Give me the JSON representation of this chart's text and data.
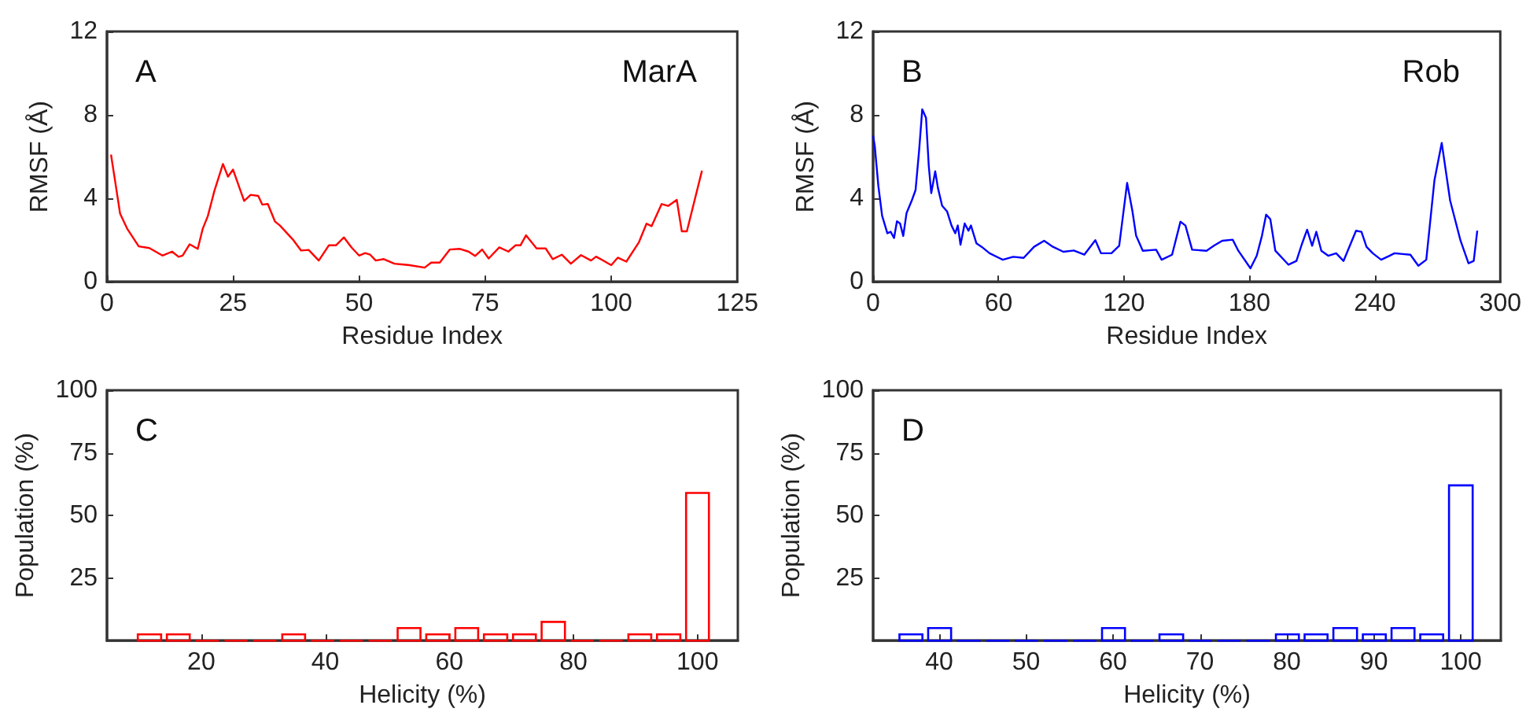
{
  "chart_data": [
    {
      "type": "line",
      "xlabel": "Residue Index",
      "ylabel": "RMSF (Å)",
      "annotations": [
        "A",
        "MarA"
      ],
      "xlim": [
        0,
        125
      ],
      "xticks": [
        0,
        25,
        50,
        75,
        100,
        125
      ],
      "ylim": [
        0,
        12
      ],
      "yticks": [
        0,
        4,
        8,
        12
      ],
      "x": [
        0.8,
        1.6,
        2.6,
        4,
        6.3,
        8.4,
        11,
        12.9,
        14.2,
        15,
        16.4,
        18,
        19,
        20,
        21.3,
        23,
        24,
        25,
        27.2,
        28.5,
        30,
        30.8,
        31.9,
        33.3,
        34.3,
        37,
        38.5,
        40,
        42,
        44,
        45.4,
        47,
        48.5,
        50,
        51.2,
        52.2,
        53.3,
        54.9,
        57,
        60,
        63,
        64.3,
        66,
        68,
        70,
        71.7,
        73,
        74.4,
        75.7,
        77.8,
        79.6,
        81,
        82,
        83.1,
        85.2,
        87,
        88.4,
        90.2,
        92,
        94,
        96,
        97,
        100,
        101.3,
        103,
        105.5,
        107,
        108,
        110,
        111.3,
        113,
        114,
        115,
        118
      ],
      "series": [
        {
          "color": "#ff0000",
          "values": [
            6.1,
            4.85,
            3.27,
            2.55,
            1.7,
            1.62,
            1.26,
            1.45,
            1.2,
            1.26,
            1.8,
            1.58,
            2.55,
            3.15,
            4.36,
            5.65,
            5.04,
            5.38,
            3.88,
            4.17,
            4.12,
            3.7,
            3.73,
            2.9,
            2.7,
            1.99,
            1.5,
            1.53,
            1.02,
            1.75,
            1.75,
            2.13,
            1.65,
            1.26,
            1.38,
            1.3,
            1.02,
            1.09,
            0.87,
            0.8,
            0.68,
            0.92,
            0.92,
            1.55,
            1.58,
            1.45,
            1.24,
            1.55,
            1.12,
            1.65,
            1.45,
            1.75,
            1.75,
            2.23,
            1.6,
            1.6,
            1.09,
            1.3,
            0.87,
            1.28,
            1.02,
            1.21,
            0.8,
            1.16,
            0.97,
            1.9,
            2.79,
            2.67,
            3.73,
            3.64,
            3.93,
            2.42,
            2.42,
            5.33
          ]
        }
      ]
    },
    {
      "type": "line",
      "xlabel": "Residue Index",
      "ylabel": "RMSF (Å)",
      "annotations": [
        "B",
        "Rob"
      ],
      "xlim": [
        0,
        300
      ],
      "xticks": [
        0,
        60,
        120,
        180,
        240,
        300
      ],
      "ylim": [
        0,
        12
      ],
      "yticks": [
        0,
        4,
        8,
        12
      ],
      "x": [
        0,
        0.8,
        2.5,
        4.3,
        6.8,
        8.4,
        10,
        11.4,
        12.9,
        14.4,
        16,
        18.5,
        20.3,
        22,
        23.5,
        25.3,
        26.6,
        27.8,
        29.7,
        31,
        33,
        35.4,
        37.5,
        39.3,
        40.5,
        41.8,
        43.8,
        45.6,
        46.8,
        49.4,
        51.9,
        55.7,
        62,
        67,
        72,
        77,
        81.8,
        86,
        91,
        96,
        101,
        106.3,
        109,
        114,
        117.7,
        121.5,
        124,
        125.8,
        129,
        135.4,
        138,
        143,
        147,
        149.4,
        152.6,
        159.5,
        163,
        167,
        172,
        174.7,
        180.5,
        183.5,
        186,
        188,
        190,
        192.4,
        198.7,
        202.5,
        205,
        207.6,
        210,
        212,
        214.4,
        217.7,
        221.5,
        225,
        231,
        233.6,
        236,
        239,
        243,
        247,
        249.4,
        257,
        260.8,
        264.6,
        268.5,
        272,
        276,
        281,
        284.8,
        287.3,
        289
      ],
      "series": [
        {
          "color": "#0000ff",
          "values": [
            7.0,
            6.5,
            4.6,
            3.17,
            2.33,
            2.4,
            2.1,
            2.9,
            2.8,
            2.2,
            3.3,
            3.9,
            4.4,
            6.3,
            8.27,
            7.86,
            5.58,
            4.25,
            5.3,
            4.5,
            3.65,
            3.37,
            2.7,
            2.33,
            2.7,
            1.78,
            2.8,
            2.45,
            2.7,
            1.85,
            1.68,
            1.37,
            1.06,
            1.2,
            1.15,
            1.68,
            1.97,
            1.68,
            1.44,
            1.5,
            1.3,
            2.0,
            1.37,
            1.37,
            1.73,
            4.74,
            3.41,
            2.21,
            1.49,
            1.54,
            1.06,
            1.3,
            2.88,
            2.7,
            1.54,
            1.49,
            1.73,
            1.97,
            2.02,
            1.49,
            0.65,
            1.25,
            2.21,
            3.22,
            3.0,
            1.49,
            0.82,
            1.0,
            1.78,
            2.5,
            1.73,
            2.4,
            1.49,
            1.25,
            1.37,
            1.0,
            2.45,
            2.4,
            1.68,
            1.37,
            1.06,
            1.25,
            1.37,
            1.3,
            0.77,
            1.06,
            4.86,
            6.66,
            3.9,
            1.97,
            0.89,
            1.0,
            2.45
          ]
        }
      ]
    },
    {
      "type": "histogram",
      "xlabel": "Helicity (%)",
      "ylabel": "Population (%)",
      "annotations": [
        "C"
      ],
      "color": "#ff0000",
      "xlim": [
        4.8,
        106.5
      ],
      "xticks": [
        20,
        40,
        60,
        80,
        100
      ],
      "ylim": [
        0,
        100
      ],
      "yticks": [
        25,
        50,
        75,
        100
      ],
      "bins": [
        9.3,
        14.0,
        18.6,
        23.3,
        27.9,
        32.6,
        37.2,
        41.9,
        46.5,
        51.2,
        55.8,
        60.5,
        65.1,
        69.8,
        74.4,
        79.1,
        83.7,
        88.4,
        93.0,
        97.7,
        102.3
      ],
      "values": [
        2.5,
        2.5,
        0,
        0,
        0,
        2.5,
        0,
        0,
        0,
        5,
        2.5,
        5,
        2.5,
        2.5,
        7.5,
        0,
        0,
        2.5,
        2.5,
        59
      ]
    },
    {
      "type": "histogram",
      "xlabel": "Helicity (%)",
      "ylabel": "Population (%)",
      "annotations": [
        "D"
      ],
      "color": "#0000ff",
      "xlim": [
        32.4,
        104.6
      ],
      "xticks": [
        40,
        50,
        60,
        70,
        80,
        90,
        100
      ],
      "ylim": [
        0,
        100
      ],
      "yticks": [
        25,
        50,
        75,
        100
      ],
      "bins": [
        35.1,
        38.4,
        41.7,
        45.1,
        48.4,
        51.7,
        55.1,
        58.4,
        61.7,
        65.0,
        68.4,
        71.7,
        75.0,
        78.4,
        81.7,
        85.0,
        88.4,
        91.7,
        95.0,
        98.3,
        101.7
      ],
      "values": [
        2.5,
        5,
        0,
        0,
        0,
        0,
        0,
        5,
        0,
        2.5,
        0,
        0,
        0,
        2.5,
        2.5,
        5,
        2.5,
        5,
        2.5,
        62
      ]
    }
  ]
}
